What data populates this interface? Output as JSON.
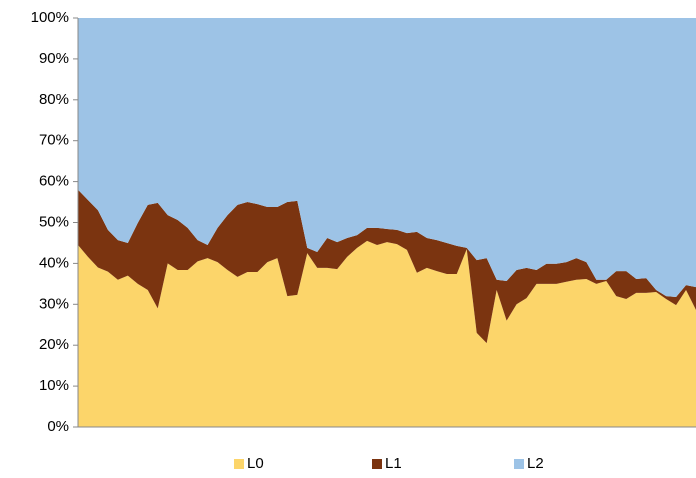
{
  "chart_data": {
    "type": "area",
    "stacked": true,
    "categories": [
      null,
      null,
      null,
      null,
      null,
      null,
      null,
      null,
      null,
      null,
      null,
      null,
      null,
      null,
      null,
      null,
      null,
      null,
      null,
      null,
      null,
      null,
      null,
      null,
      null,
      null,
      null,
      null,
      null,
      null,
      null,
      null,
      null,
      null,
      null,
      null,
      null,
      null,
      null,
      null,
      null,
      null,
      null,
      null,
      null,
      null,
      null,
      null,
      null,
      null,
      null,
      null,
      null,
      null,
      null,
      null,
      null,
      null,
      null,
      null,
      null,
      null,
      null
    ],
    "series": [
      {
        "name": "L0",
        "color": "#fcd56a",
        "values": [
          44.5,
          41.6,
          39,
          38,
          36,
          37,
          35,
          33.5,
          29,
          40,
          38.4,
          38.4,
          40.5,
          41.3,
          40.3,
          38.4,
          36.7,
          37.9,
          37.9,
          40.3,
          41.3,
          32,
          32.3,
          42.5,
          38.9,
          38.9,
          38.6,
          41.6,
          43.8,
          45.5,
          44.5,
          45.2,
          44.7,
          43.3,
          37.7,
          38.9,
          38.1,
          37.4,
          37.4,
          43.5,
          23,
          20.5,
          33.5,
          26,
          30,
          31.5,
          35,
          35,
          35,
          35.5,
          36,
          36.2,
          35,
          35.7,
          32,
          31.3,
          32.8,
          32.8,
          33,
          31.3,
          29.8,
          33.5,
          28.6
        ]
      },
      {
        "name": "L1",
        "color": "#7b3410",
        "values": [
          13.5,
          13.9,
          14,
          10.2,
          9.7,
          8,
          14.9,
          20.8,
          25.8,
          11.8,
          12.2,
          10.3,
          5.2,
          3.2,
          8.4,
          13.4,
          17.6,
          17.1,
          16.6,
          13.5,
          12.5,
          23,
          23,
          1.3,
          3.9,
          7.3,
          6.6,
          4.6,
          3.1,
          3.2,
          4.2,
          3.2,
          3.5,
          4.1,
          10,
          7.3,
          7.6,
          7.6,
          6.9,
          0.3,
          17.8,
          20.8,
          2.5,
          9.7,
          8.4,
          7.4,
          3.4,
          4.9,
          4.9,
          4.8,
          5.3,
          4.1,
          1,
          0.3,
          6.1,
          6.8,
          3.4,
          3.6,
          0.5,
          0.7,
          2,
          1.2,
          5.6
        ]
      },
      {
        "name": "L2",
        "color": "#9dc3e6",
        "values": [
          42,
          44.5,
          47,
          51.8,
          54.3,
          55,
          50.1,
          45.7,
          45.2,
          48.2,
          49.4,
          51.3,
          54.3,
          55.5,
          51.3,
          48.2,
          45.7,
          45,
          45.5,
          46.2,
          46.2,
          45,
          44.7,
          56.2,
          57.2,
          53.8,
          54.8,
          53.8,
          53.1,
          51.3,
          51.3,
          51.6,
          51.8,
          52.6,
          52.3,
          53.8,
          54.3,
          55,
          55.7,
          56.2,
          59.2,
          58.7,
          64,
          64.3,
          61.6,
          61.1,
          61.6,
          60.1,
          60.1,
          59.7,
          58.7,
          59.7,
          64,
          64,
          61.9,
          61.9,
          63.8,
          63.6,
          66.5,
          68,
          68.2,
          65.3,
          65.8
        ]
      }
    ],
    "ylim": [
      0,
      100
    ],
    "yticks": [
      {
        "value": 0,
        "label": "0%"
      },
      {
        "value": 10,
        "label": "10%"
      },
      {
        "value": 20,
        "label": "20%"
      },
      {
        "value": 30,
        "label": "30%"
      },
      {
        "value": 40,
        "label": "40%"
      },
      {
        "value": 50,
        "label": "50%"
      },
      {
        "value": 60,
        "label": "60%"
      },
      {
        "value": 70,
        "label": "70%"
      },
      {
        "value": 80,
        "label": "80%"
      },
      {
        "value": 90,
        "label": "90%"
      },
      {
        "value": 100,
        "label": "100%"
      }
    ],
    "legend": "bottom"
  }
}
